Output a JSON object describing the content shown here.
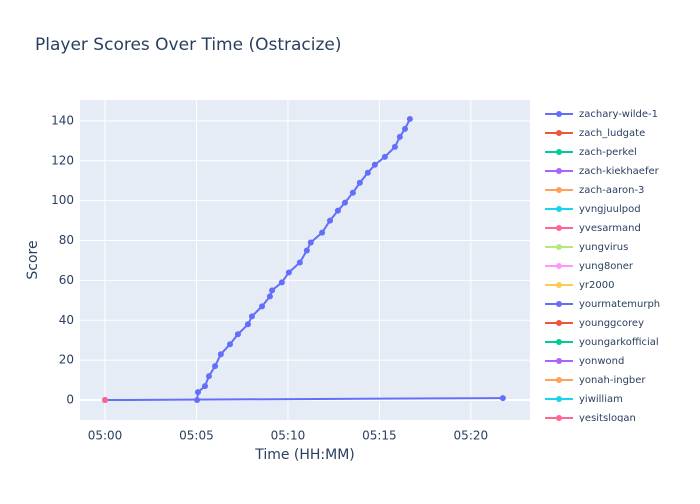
{
  "chart_data": {
    "type": "line",
    "title": "Player Scores Over Time (Ostracize)",
    "x_label": "Time (HH:MM)",
    "y_label": "Score",
    "xlim": [
      "04:58:38",
      "05:23:14"
    ],
    "xticks": [
      "05:00",
      "05:05",
      "05:10",
      "05:15",
      "05:20"
    ],
    "ylim": [
      -10,
      150.5
    ],
    "yticks": [
      0,
      20,
      40,
      60,
      80,
      100,
      120,
      140
    ],
    "grid": true,
    "legend": "right",
    "series": [
      {
        "name": "zachary-wilde-1",
        "color": "#636efa",
        "x": [
          "05:05:02",
          "05:05:05",
          "05:05:28",
          "05:05:41",
          "05:06:01",
          "05:06:20",
          "05:06:50",
          "05:07:16",
          "05:07:49",
          "05:08:02",
          "05:08:35",
          "05:09:01",
          "05:09:08",
          "05:09:40",
          "05:10:03",
          "05:10:39",
          "05:11:02",
          "05:11:15",
          "05:11:52",
          "05:12:18",
          "05:12:44",
          "05:13:07",
          "05:13:33",
          "05:13:56",
          "05:14:22",
          "05:14:45",
          "05:15:18",
          "05:15:51",
          "05:16:07",
          "05:16:24",
          "05:16:40"
        ],
        "values": [
          0,
          4,
          7,
          12,
          17,
          23,
          28,
          33,
          38,
          42,
          47,
          52,
          55,
          59,
          64,
          69,
          75,
          79,
          84,
          90,
          95,
          99,
          104,
          109,
          114,
          118,
          122,
          127,
          132,
          136,
          141
        ]
      },
      {
        "name": "zach_ludgate",
        "color": "#EF553B",
        "x": [
          "05:00:00"
        ],
        "values": [
          0
        ]
      },
      {
        "name": "zach-perkel",
        "color": "#00cc96",
        "x": [
          "05:00:00"
        ],
        "values": [
          0
        ]
      },
      {
        "name": "zach-kiekhaefer",
        "color": "#ab63fa",
        "x": [
          "05:00:00"
        ],
        "values": [
          0
        ]
      },
      {
        "name": "zach-aaron-3",
        "color": "#FFA15A",
        "x": [
          "05:00:00"
        ],
        "values": [
          0
        ]
      },
      {
        "name": "yvngjuulpod",
        "color": "#19d3f3",
        "x": [
          "05:00:00"
        ],
        "values": [
          0
        ]
      },
      {
        "name": "yvesarmand",
        "color": "#FF6692",
        "x": [
          "05:00:00"
        ],
        "values": [
          0
        ]
      },
      {
        "name": "yungvirus",
        "color": "#B6E880",
        "x": [
          "05:00:00"
        ],
        "values": [
          0
        ]
      },
      {
        "name": "yung8oner",
        "color": "#FF97FF",
        "x": [
          "05:00:00"
        ],
        "values": [
          0
        ]
      },
      {
        "name": "yr2000",
        "color": "#FECB52",
        "x": [
          "05:00:00"
        ],
        "values": [
          0
        ]
      },
      {
        "name": "yourmatemurph",
        "color": "#636efa",
        "x": [
          "05:00:00",
          "05:21:45"
        ],
        "values": [
          0,
          1
        ]
      },
      {
        "name": "younggcorey",
        "color": "#EF553B",
        "x": [
          "05:00:00"
        ],
        "values": [
          0
        ]
      },
      {
        "name": "youngarkofficial",
        "color": "#00cc96",
        "x": [
          "05:00:00"
        ],
        "values": [
          0
        ]
      },
      {
        "name": "yonwond",
        "color": "#ab63fa",
        "x": [
          "05:00:00"
        ],
        "values": [
          0
        ]
      },
      {
        "name": "yonah-ingber",
        "color": "#FFA15A",
        "x": [
          "05:00:00"
        ],
        "values": [
          0
        ]
      },
      {
        "name": "yiwilliam",
        "color": "#19d3f3",
        "x": [
          "05:00:00"
        ],
        "values": [
          0
        ]
      },
      {
        "name": "yesitslogan",
        "color": "#FF6692",
        "x": [
          "05:00:00"
        ],
        "values": [
          0
        ]
      }
    ]
  }
}
